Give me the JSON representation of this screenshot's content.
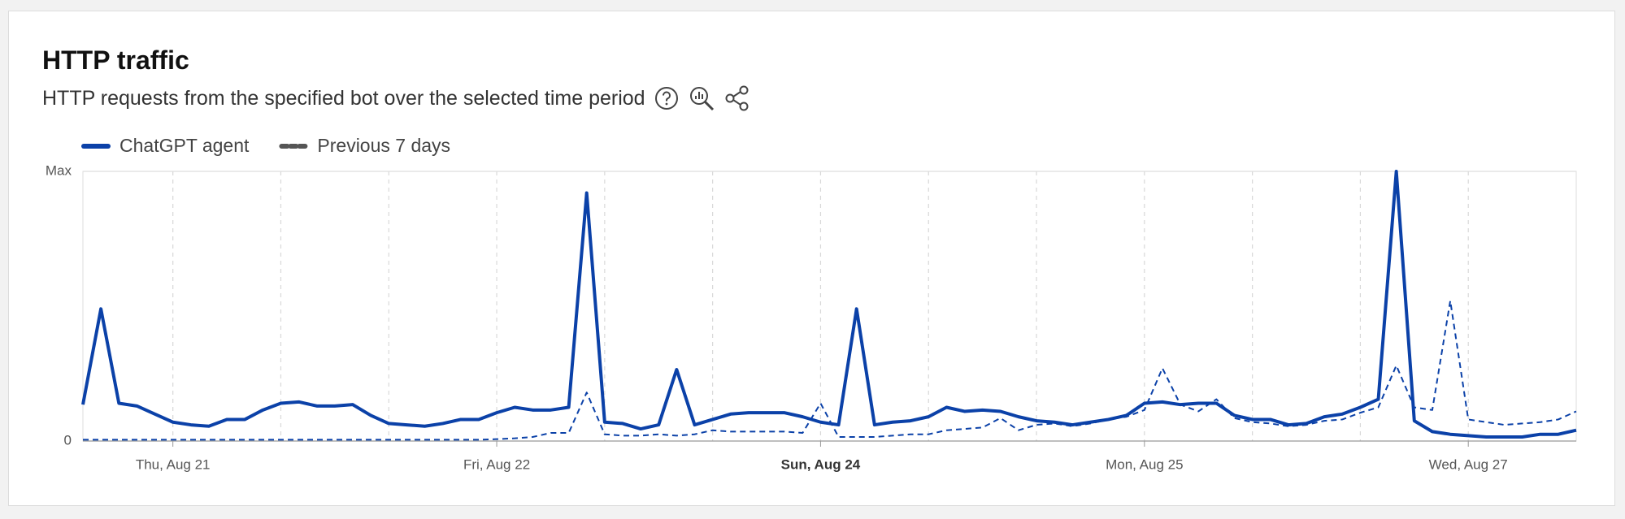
{
  "chart_data": {
    "type": "line",
    "title": "HTTP traffic",
    "subtitle": "HTTP requests from the specified bot over the selected time period",
    "categories": [
      null,
      null,
      null,
      null,
      null,
      "Thu, Aug 21",
      null,
      null,
      null,
      null,
      null,
      null,
      null,
      null,
      null,
      null,
      null,
      null,
      null,
      null,
      null,
      null,
      null,
      "Fri, Aug 22",
      null,
      null,
      null,
      null,
      null,
      null,
      null,
      null,
      null,
      null,
      null,
      null,
      null,
      null,
      null,
      null,
      null,
      "Sun, Aug 24",
      null,
      null,
      null,
      null,
      null,
      null,
      null,
      null,
      null,
      null,
      null,
      null,
      null,
      null,
      null,
      null,
      null,
      "Mon, Aug 25",
      null,
      null,
      null,
      null,
      null,
      null,
      null,
      null,
      null,
      null,
      null,
      null,
      null,
      null,
      null,
      null,
      null,
      "Wed, Aug 27",
      null,
      null,
      null,
      null,
      null,
      null
    ],
    "highlight_category": 41,
    "series": [
      {
        "name": "ChatGPT agent",
        "color": "#0b41a8",
        "dashed": false,
        "values": [
          13.5,
          49,
          14,
          13,
          10,
          7,
          6,
          5.5,
          8,
          8,
          11.5,
          14,
          14.5,
          13,
          13,
          13.5,
          9.5,
          6.5,
          6,
          5.5,
          6.5,
          8,
          8,
          10.5,
          12.5,
          11.5,
          11.5,
          12.5,
          92,
          7,
          6.5,
          4.5,
          6,
          26.5,
          6,
          8,
          10,
          10.5,
          10.5,
          10.5,
          9,
          7,
          6,
          49,
          6,
          7,
          7.5,
          9,
          12.5,
          11,
          11.5,
          11,
          9,
          7.5,
          7,
          6,
          7,
          8,
          9.5,
          14,
          14.5,
          13.5,
          14,
          14,
          9.5,
          8,
          8,
          6,
          6.5,
          9,
          10,
          12.5,
          15.5,
          100,
          7.5,
          3.5,
          2.5,
          2,
          1.5,
          1.5,
          1.5,
          2.5,
          2.5,
          4
        ]
      },
      {
        "name": "Previous 7 days",
        "color": "#0b41a8",
        "legend_color": "#555555",
        "dashed": true,
        "values": [
          0.5,
          0.5,
          0.5,
          0.5,
          0.5,
          0.5,
          0.5,
          0.5,
          0.5,
          0.5,
          0.5,
          0.5,
          0.5,
          0.5,
          0.5,
          0.5,
          0.5,
          0.5,
          0.5,
          0.5,
          0.5,
          0.5,
          0.5,
          0.7,
          1,
          1.5,
          3,
          3,
          18,
          2.5,
          2,
          2,
          2.5,
          2,
          2.5,
          4,
          3.5,
          3.5,
          3.5,
          3.5,
          3,
          14,
          1.5,
          1.5,
          1.5,
          2,
          2.5,
          2.5,
          4,
          4.5,
          5,
          8.5,
          4,
          6,
          6.5,
          5.5,
          6.5,
          8,
          9,
          11.5,
          27,
          13.5,
          11,
          15.5,
          8.5,
          7,
          6.5,
          5.5,
          6,
          7.5,
          8,
          10.5,
          12.5,
          28,
          12.5,
          11.5,
          52,
          8,
          7,
          6,
          6.5,
          7,
          8,
          11
        ]
      }
    ],
    "ylim": [
      0,
      100
    ],
    "yticks": [
      0,
      {
        "value": 100,
        "label": "Max"
      }
    ],
    "grid": true
  }
}
